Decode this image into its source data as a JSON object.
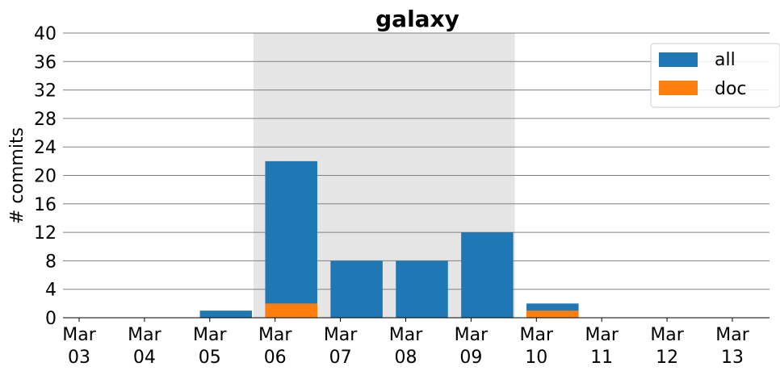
{
  "chart_data": {
    "type": "bar",
    "title": "galaxy",
    "xlabel": "",
    "ylabel": "# commits",
    "categories": [
      "Mar\n03",
      "Mar\n04",
      "Mar\n05",
      "Mar\n06",
      "Mar\n07",
      "Mar\n08",
      "Mar\n09",
      "Mar\n10",
      "Mar\n11",
      "Mar\n12",
      "Mar\n13"
    ],
    "series": [
      {
        "name": "all",
        "values": [
          0,
          0,
          1,
          22,
          8,
          8,
          12,
          2,
          0,
          0,
          0
        ]
      },
      {
        "name": "doc",
        "values": [
          0,
          0,
          0,
          2,
          0,
          0,
          0,
          1,
          0,
          0,
          0
        ]
      }
    ],
    "ylim": [
      0,
      40
    ],
    "yticks": [
      0,
      4,
      8,
      12,
      16,
      20,
      24,
      28,
      32,
      36,
      40
    ],
    "grid": true,
    "legend_position": "top-right",
    "highlight_span": {
      "from_index": 2.67,
      "to_index": 6.67
    },
    "colors": {
      "all": "#1f77b4",
      "doc": "#ff7f0e",
      "highlight": "#e5e5e5",
      "grid": "#808080"
    }
  }
}
